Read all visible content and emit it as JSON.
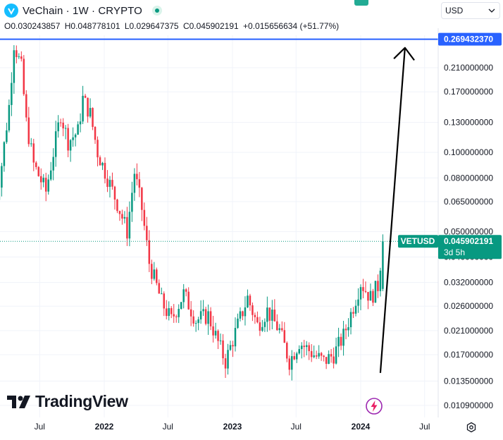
{
  "header": {
    "symbol_title": "VeChain · 1W · CRYPTO",
    "ohlc": {
      "open": "O0.030243857",
      "high": "H0.048778101",
      "low": "L0.029647375",
      "close": "C0.045902191",
      "change": "+0.015656634 (+51.77%)"
    },
    "currency": "USD"
  },
  "price_tag": {
    "symbol": "VETUSD",
    "price": "0.045902191",
    "countdown": "3d 5h"
  },
  "horizontal_line_label": "0.269432370",
  "branding": {
    "logo_text": "TradingView"
  },
  "icons": {
    "logo": "vechain-logo-icon",
    "live": "live-status-icon",
    "currency_dropdown": "chevron-down-icon",
    "tradingview": "tradingview-logo-icon",
    "bolt": "lightning-bolt-icon",
    "settings": "settings-icon"
  },
  "colors": {
    "up": "#089981",
    "down": "#f23645",
    "hline": "#2962ff",
    "price_tag": "#089981",
    "arrow": "#000000"
  },
  "chart_data": {
    "type": "candlestick",
    "title": "VeChain · 1W · CRYPTO",
    "symbol": "VETUSD",
    "y_scale": "log",
    "y_ticks": [
      "0.210000000",
      "0.170000000",
      "0.130000000",
      "0.100000000",
      "0.080000000",
      "0.065000000",
      "0.050000000",
      "0.040000000",
      "0.032000000",
      "0.026000000",
      "0.021000000",
      "0.017000000",
      "0.013500000",
      "0.010900000"
    ],
    "y_tick_values": [
      0.21,
      0.17,
      0.13,
      0.1,
      0.08,
      0.065,
      0.05,
      0.04,
      0.032,
      0.026,
      0.021,
      0.017,
      0.0135,
      0.0109
    ],
    "x_ticks": [
      "Jul",
      "2022",
      "Jul",
      "2023",
      "Jul",
      "2024",
      "Jul"
    ],
    "x_tick_dates": [
      "2021-07-01",
      "2022-01-01",
      "2022-07-01",
      "2023-01-01",
      "2023-07-01",
      "2024-01-01",
      "2024-07-01"
    ],
    "horizontal_line": 0.26943237,
    "last_price": 0.045902191,
    "path": [
      [
        "2021-02-22",
        0.06
      ],
      [
        "2021-03-15",
        0.09
      ],
      [
        "2021-04-05",
        0.15
      ],
      [
        "2021-04-19",
        0.26
      ],
      [
        "2021-05-10",
        0.21
      ],
      [
        "2021-05-24",
        0.13
      ],
      [
        "2021-06-14",
        0.09
      ],
      [
        "2021-07-19",
        0.071
      ],
      [
        "2021-08-30",
        0.14
      ],
      [
        "2021-09-20",
        0.11
      ],
      [
        "2021-10-18",
        0.12
      ],
      [
        "2021-11-01",
        0.16
      ],
      [
        "2021-11-22",
        0.14
      ],
      [
        "2021-12-13",
        0.1
      ],
      [
        "2022-01-10",
        0.08
      ],
      [
        "2022-02-07",
        0.064
      ],
      [
        "2022-03-07",
        0.05
      ],
      [
        "2022-03-28",
        0.084
      ],
      [
        "2022-04-18",
        0.061
      ],
      [
        "2022-05-09",
        0.038
      ],
      [
        "2022-06-13",
        0.027
      ],
      [
        "2022-07-11",
        0.023
      ],
      [
        "2022-08-15",
        0.029
      ],
      [
        "2022-09-19",
        0.023
      ],
      [
        "2022-10-24",
        0.024
      ],
      [
        "2022-11-14",
        0.02
      ],
      [
        "2022-12-12",
        0.016
      ],
      [
        "2023-01-16",
        0.022
      ],
      [
        "2023-02-13",
        0.028
      ],
      [
        "2023-03-13",
        0.022
      ],
      [
        "2023-04-10",
        0.025
      ],
      [
        "2023-05-15",
        0.021
      ],
      [
        "2023-06-12",
        0.016
      ],
      [
        "2023-07-10",
        0.019
      ],
      [
        "2023-08-21",
        0.017
      ],
      [
        "2023-09-18",
        0.016
      ],
      [
        "2023-10-16",
        0.017
      ],
      [
        "2023-11-13",
        0.02
      ],
      [
        "2023-12-11",
        0.026
      ],
      [
        "2024-01-01",
        0.032
      ],
      [
        "2024-01-29",
        0.028
      ],
      [
        "2024-02-19",
        0.031
      ],
      [
        "2024-03-04",
        0.0459
      ]
    ],
    "projection_arrow": {
      "from": [
        "2024-02-26",
        0.0145
      ],
      "to": [
        "2024-05-06",
        0.25
      ]
    }
  }
}
